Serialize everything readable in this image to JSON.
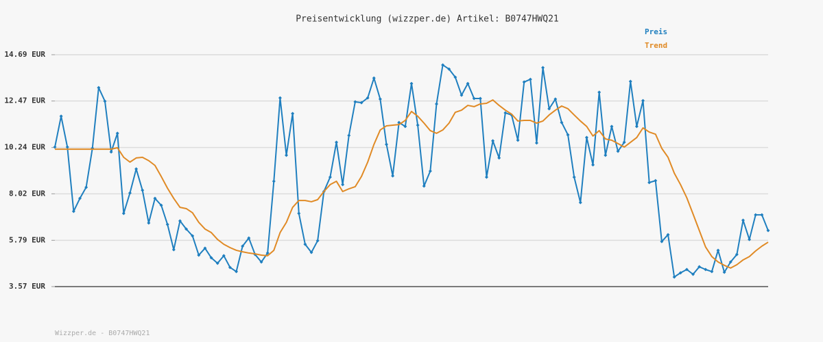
{
  "chart_data": {
    "type": "line",
    "title": "Preisentwicklung (wizzper.de) Artikel: B0747HWQ21",
    "footer": "Wizzper.de - B0747HWQ21",
    "ylim": [
      3.57,
      14.69
    ],
    "yticks": [
      {
        "value": 3.57,
        "label": "3.57 EUR"
      },
      {
        "value": 5.79,
        "label": "5.79 EUR"
      },
      {
        "value": 8.02,
        "label": "8.02 EUR"
      },
      {
        "value": 10.24,
        "label": "10.24 EUR"
      },
      {
        "value": 12.47,
        "label": "12.47 EUR"
      },
      {
        "value": 14.69,
        "label": "14.69 EUR"
      }
    ],
    "grid": true,
    "legend": "top-right",
    "series": [
      {
        "name": "Preis",
        "color": "#1f7fbf",
        "markers": true,
        "values": [
          10.26,
          11.74,
          10.26,
          7.18,
          7.8,
          8.33,
          10.2,
          13.11,
          12.46,
          10.03,
          10.92,
          7.08,
          8.06,
          9.21,
          8.19,
          6.62,
          7.8,
          7.47,
          6.55,
          5.34,
          6.72,
          6.33,
          6.0,
          5.08,
          5.41,
          4.95,
          4.69,
          5.05,
          4.49,
          4.29,
          5.51,
          5.9,
          5.11,
          4.75,
          5.18,
          8.62,
          12.62,
          9.87,
          11.87,
          7.08,
          5.6,
          5.21,
          5.77,
          8.13,
          8.82,
          10.49,
          8.46,
          10.82,
          12.43,
          12.39,
          12.62,
          13.57,
          12.56,
          10.39,
          8.88,
          11.44,
          11.25,
          13.31,
          11.31,
          8.39,
          9.11,
          12.33,
          14.2,
          14.0,
          13.61,
          12.75,
          13.31,
          12.59,
          12.59,
          8.82,
          10.56,
          9.74,
          11.9,
          11.8,
          10.59,
          13.38,
          13.51,
          10.46,
          14.07,
          12.1,
          12.56,
          11.44,
          10.85,
          8.82,
          7.6,
          10.72,
          9.41,
          12.89,
          9.87,
          11.25,
          10.06,
          10.49,
          13.41,
          11.25,
          12.49,
          8.56,
          8.65,
          5.73,
          6.06,
          4.03,
          4.23,
          4.39,
          4.16,
          4.52,
          4.39,
          4.29,
          5.31,
          4.26,
          4.75,
          5.11,
          6.75,
          5.83,
          7.01,
          7.01,
          6.26
        ]
      },
      {
        "name": "Trend",
        "color": "#e08a25",
        "markers": false,
        "values": [
          10.16,
          10.16,
          10.16,
          10.16,
          10.16,
          10.16,
          10.16,
          10.16,
          10.16,
          10.16,
          10.23,
          9.77,
          9.54,
          9.74,
          9.77,
          9.61,
          9.38,
          8.85,
          8.29,
          7.8,
          7.37,
          7.31,
          7.11,
          6.65,
          6.33,
          6.16,
          5.83,
          5.6,
          5.44,
          5.31,
          5.24,
          5.18,
          5.14,
          5.08,
          5.05,
          5.31,
          6.16,
          6.65,
          7.37,
          7.7,
          7.7,
          7.64,
          7.74,
          8.13,
          8.46,
          8.62,
          8.13,
          8.26,
          8.36,
          8.85,
          9.54,
          10.39,
          11.08,
          11.28,
          11.31,
          11.34,
          11.54,
          11.97,
          11.74,
          11.41,
          11.05,
          10.92,
          11.08,
          11.41,
          11.93,
          12.03,
          12.26,
          12.2,
          12.33,
          12.36,
          12.52,
          12.26,
          12.03,
          11.84,
          11.51,
          11.54,
          11.54,
          11.41,
          11.51,
          11.8,
          12.03,
          12.23,
          12.1,
          11.8,
          11.51,
          11.25,
          10.79,
          11.05,
          10.65,
          10.59,
          10.43,
          10.26,
          10.49,
          10.72,
          11.18,
          10.98,
          10.88,
          10.2,
          9.77,
          9.01,
          8.46,
          7.83,
          7.05,
          6.26,
          5.47,
          5.01,
          4.75,
          4.59,
          4.46,
          4.62,
          4.85,
          5.01,
          5.28,
          5.51,
          5.7
        ]
      }
    ]
  }
}
